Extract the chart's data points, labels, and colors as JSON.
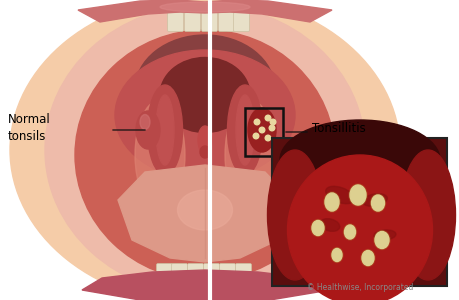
{
  "bg_color": "#ffffff",
  "label_normal": "Normal\ntonsils",
  "label_tonsillitis": "Tonsillitis",
  "copyright": "© Healthwise, Incorporated",
  "skin_outer": "#f5cca8",
  "skin_mid": "#eebbaa",
  "lip_color": "#cc7070",
  "lip_dark": "#b85060",
  "mouth_inner": "#cc6055",
  "throat_upper": "#994040",
  "throat_dark": "#7a2828",
  "palate_color": "#c05050",
  "tongue_color": "#dd9988",
  "tongue_light": "#eaaa99",
  "teeth_color": "#e8e0c8",
  "tonsil_left_color": "#b84848",
  "tonsil_right_color": "#992020",
  "spot_color": "#e8d8a0",
  "divider_color": "#ffffff",
  "label_color": "#000000",
  "box_edge_color": "#111111",
  "inset_bg": "#5a0e0e",
  "inset_tonsil": "#aa1818",
  "inset_spot_color": "#ddd090",
  "inset_throat_dark": "#3a0808",
  "line_color": "#111111",
  "copyright_color": "#888888",
  "mouth_cavity_color": "#c05050",
  "arch_color": "#b84848",
  "uvula_color": "#c04848",
  "cheek_color": "#dd8070",
  "upper_throat_color": "#884040"
}
